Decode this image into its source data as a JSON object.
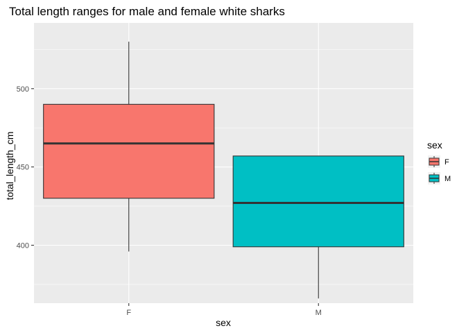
{
  "chart_data": {
    "type": "box",
    "title": "Total length ranges for male and female white sharks",
    "xlabel": "sex",
    "ylabel": "total_length_cm",
    "categories": [
      "F",
      "M"
    ],
    "ylim": [
      363,
      542
    ],
    "yticks": [
      400,
      450,
      500
    ],
    "grid": true,
    "boxes": [
      {
        "category": "F",
        "fill": "#F8766D",
        "whisker_low": 396,
        "q1": 430,
        "median": 465,
        "q3": 490,
        "whisker_high": 530
      },
      {
        "category": "M",
        "fill": "#00BFC4",
        "whisker_low": 366,
        "q1": 399,
        "median": 427,
        "q3": 457,
        "whisker_high": 457
      }
    ],
    "legend": {
      "title": "sex",
      "position": "right",
      "entries": [
        {
          "label": "F",
          "color": "#F8766D"
        },
        {
          "label": "M",
          "color": "#00BFC4"
        }
      ]
    },
    "panel_color": "#EBEBEB",
    "grid_color": "#FFFFFF",
    "line_color": "#333333"
  }
}
